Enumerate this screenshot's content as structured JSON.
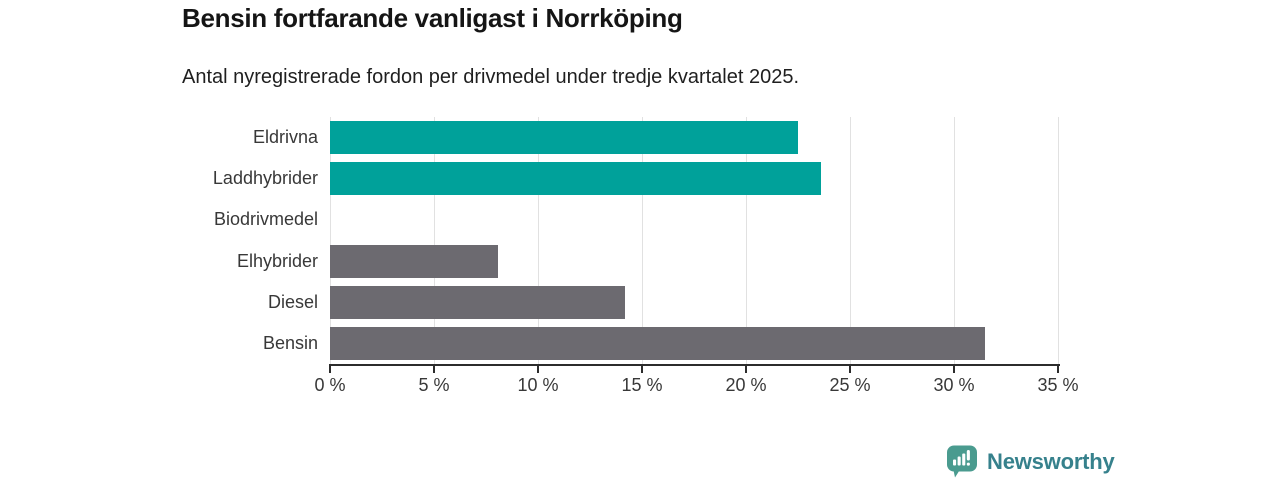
{
  "chart_data": {
    "type": "bar",
    "orientation": "horizontal",
    "title": "Bensin fortfarande vanligast i Norrköping",
    "subtitle": "Antal nyregistrerade fordon per drivmedel under tredje kvartalet 2025.",
    "categories": [
      "Eldrivna",
      "Laddhybrider",
      "Biodrivmedel",
      "Elhybrider",
      "Diesel",
      "Bensin"
    ],
    "values": [
      22.5,
      23.6,
      0,
      8.1,
      14.2,
      31.5
    ],
    "unit": "%",
    "xlabel": "",
    "ylabel": "",
    "xlim": [
      0,
      35
    ],
    "xticks": [
      0,
      5,
      10,
      15,
      20,
      25,
      30,
      35
    ],
    "xtick_labels": [
      "0 %",
      "5 %",
      "10 %",
      "15 %",
      "20 %",
      "25 %",
      "30 %",
      "35 %"
    ],
    "grid": true,
    "legend": "none",
    "bar_colors": [
      "#00a19a",
      "#00a19a",
      "#6c6a70",
      "#6c6a70",
      "#6c6a70",
      "#6c6a70"
    ],
    "colors": {
      "highlight": "#00a19a",
      "default": "#6c6a70",
      "gridline": "#e1e1e1",
      "axis": "#2c2c2c",
      "text": "#383838"
    }
  },
  "branding": {
    "logo_text": "Newsworthy",
    "logo_text_color": "#36818c",
    "logo_icon_color": "#4a9b8f",
    "logo_icon": "newsworthy-bar-chart-bubble-icon"
  }
}
